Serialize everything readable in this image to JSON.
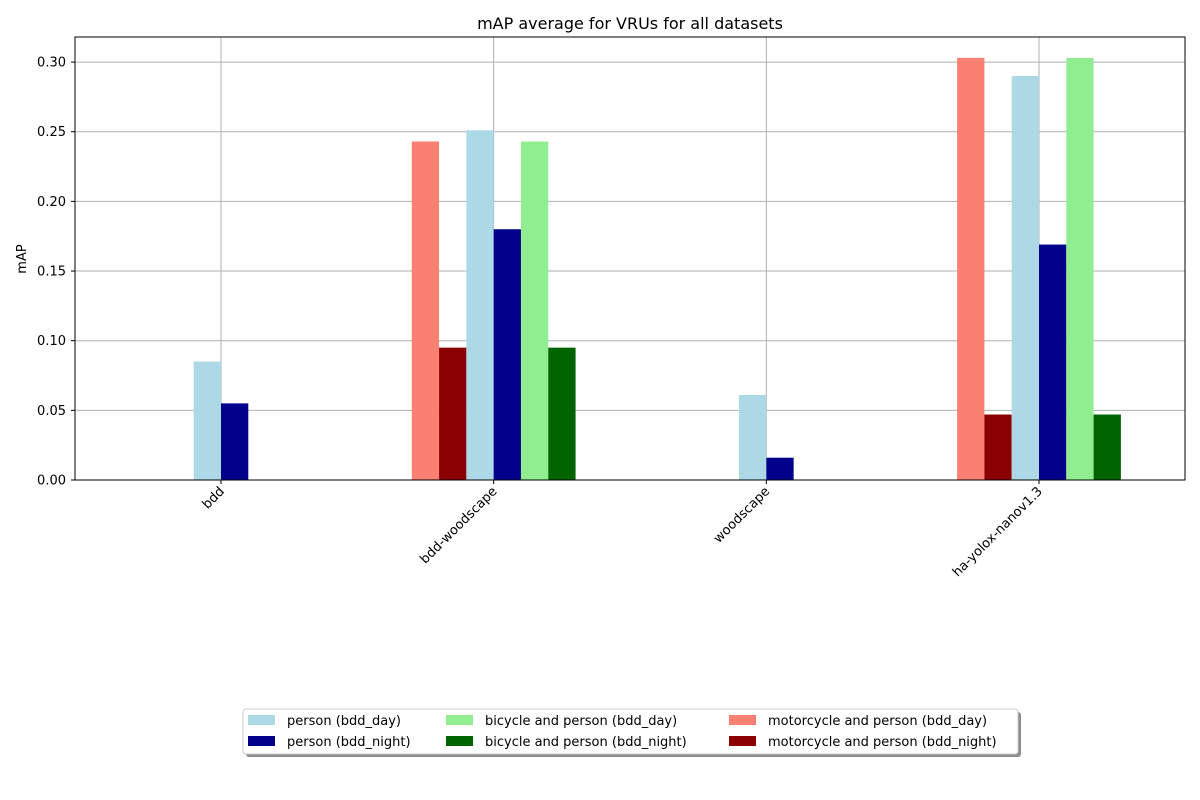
{
  "chart_data": {
    "type": "bar",
    "title": "mAP average for VRUs for all datasets",
    "xlabel": "",
    "ylabel": "mAP",
    "ylim": [
      0,
      0.318
    ],
    "yticks": [
      "0.00",
      "0.05",
      "0.10",
      "0.15",
      "0.20",
      "0.25",
      "0.30"
    ],
    "ytick_values": [
      0,
      0.05,
      0.1,
      0.15,
      0.2,
      0.25,
      0.3
    ],
    "grid": true,
    "legend_position": "bottom-center",
    "categories": [
      "bdd",
      "bdd-woodscape",
      "woodscape",
      "ha-yolox-nanov1.3"
    ],
    "series": [
      {
        "name": "motorcycle and person (bdd_day)",
        "color": "#fa8072",
        "values": [
          null,
          0.243,
          null,
          0.303
        ]
      },
      {
        "name": "motorcycle and person (bdd_night)",
        "color": "#8b0000",
        "values": [
          null,
          0.095,
          null,
          0.047
        ]
      },
      {
        "name": "person (bdd_day)",
        "color": "#add8e6",
        "values": [
          0.085,
          0.251,
          0.061,
          0.29
        ]
      },
      {
        "name": "person (bdd_night)",
        "color": "#00008b",
        "values": [
          0.055,
          0.18,
          0.016,
          0.169
        ]
      },
      {
        "name": "bicycle and person (bdd_day)",
        "color": "#90ee90",
        "values": [
          null,
          0.243,
          null,
          0.303
        ]
      },
      {
        "name": "bicycle and person (bdd_night)",
        "color": "#006400",
        "values": [
          null,
          0.095,
          null,
          0.047
        ]
      }
    ],
    "legend_order": [
      [
        "person (bdd_day)",
        "person (bdd_night)"
      ],
      [
        "bicycle and person (bdd_day)",
        "bicycle and person (bdd_night)"
      ],
      [
        "motorcycle and person (bdd_day)",
        "motorcycle and person (bdd_night)"
      ]
    ]
  }
}
